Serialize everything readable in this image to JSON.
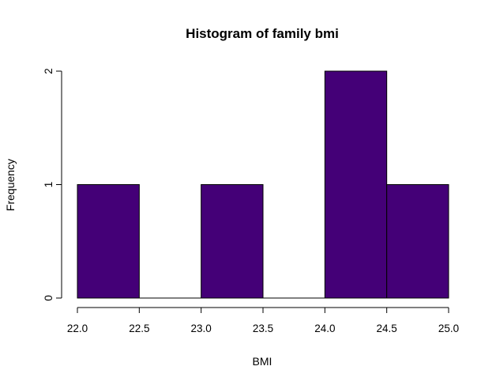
{
  "chart_data": {
    "type": "bar",
    "title": "Histogram of family bmi",
    "xlabel": "BMI",
    "ylabel": "Frequency",
    "bins": [
      {
        "from": 22.0,
        "to": 22.5,
        "count": 1
      },
      {
        "from": 22.5,
        "to": 23.0,
        "count": 0
      },
      {
        "from": 23.0,
        "to": 23.5,
        "count": 1
      },
      {
        "from": 23.5,
        "to": 24.0,
        "count": 0
      },
      {
        "from": 24.0,
        "to": 24.5,
        "count": 2
      },
      {
        "from": 24.5,
        "to": 25.0,
        "count": 1
      }
    ],
    "xlim": [
      22.0,
      25.0
    ],
    "ylim": [
      0,
      2
    ],
    "x_ticks": [
      "22.0",
      "22.5",
      "23.0",
      "23.5",
      "24.0",
      "24.5",
      "25.0"
    ],
    "y_ticks": [
      "0",
      "1",
      "2"
    ],
    "bar_color": "#440077",
    "grid": false,
    "legend": "none"
  }
}
